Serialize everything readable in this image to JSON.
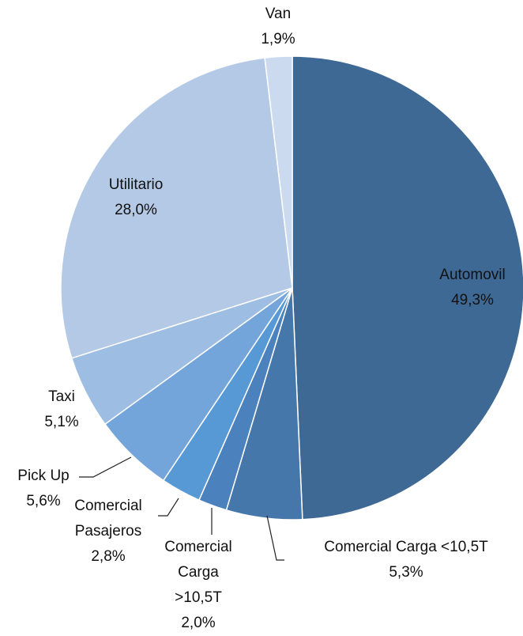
{
  "chart_data": {
    "type": "pie",
    "categories": [
      "Automovil",
      "Comercial Carga <10,5T",
      "Comercial Carga >10,5T",
      "Comercial Pasajeros",
      "Pick Up",
      "Taxi",
      "Utilitario",
      "Van"
    ],
    "values": [
      49.3,
      5.3,
      2.0,
      2.8,
      5.6,
      5.1,
      28.0,
      1.9
    ],
    "value_labels": [
      "49,3%",
      "5,3%",
      "2,0%",
      "2,8%",
      "5,6%",
      "5,1%",
      "28,0%",
      "1,9%"
    ],
    "colors": [
      "#3e6994",
      "#4677aa",
      "#4b82bd",
      "#5799d4",
      "#73a5da",
      "#9ebde2",
      "#b3c9e5",
      "#cbdaef"
    ]
  }
}
